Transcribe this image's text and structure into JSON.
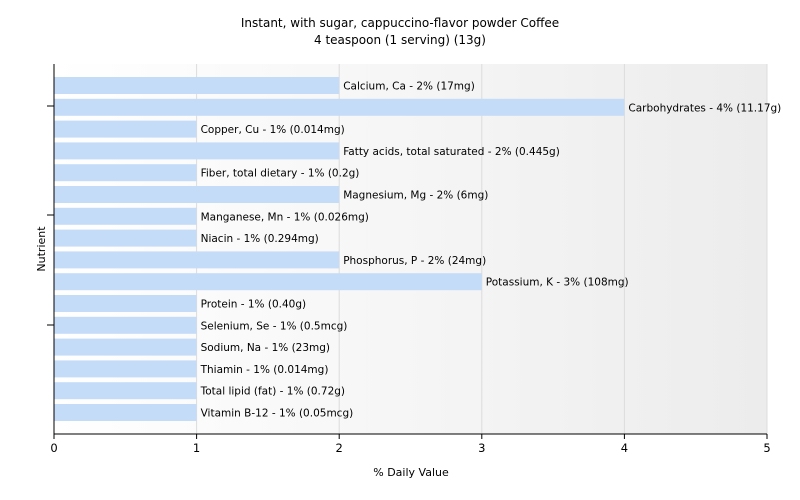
{
  "chart_data": {
    "type": "bar",
    "orientation": "horizontal",
    "title": "Instant, with sugar, cappuccino-flavor powder Coffee",
    "subtitle": "4 teaspoon (1 serving) (13g)",
    "xlabel": "% Daily Value",
    "ylabel": "Nutrient",
    "xlim": [
      0,
      5
    ],
    "xticks": [
      0,
      1,
      2,
      3,
      4,
      5
    ],
    "grid": true,
    "bar_color": "#c5dcf8",
    "categories": [
      "Calcium, Ca",
      "Carbohydrates",
      "Copper, Cu",
      "Fatty acids, total saturated",
      "Fiber, total dietary",
      "Magnesium, Mg",
      "Manganese, Mn",
      "Niacin",
      "Phosphorus, P",
      "Potassium, K",
      "Protein",
      "Selenium, Se",
      "Sodium, Na",
      "Thiamin",
      "Total lipid (fat)",
      "Vitamin B-12"
    ],
    "values": [
      2,
      4,
      1,
      2,
      1,
      2,
      1,
      1,
      2,
      3,
      1,
      1,
      1,
      1,
      1,
      1
    ],
    "labels": [
      "Calcium, Ca - 2% (17mg)",
      "Carbohydrates - 4% (11.17g)",
      "Copper, Cu - 1% (0.014mg)",
      "Fatty acids, total saturated - 2% (0.445g)",
      "Fiber, total dietary - 1% (0.2g)",
      "Magnesium, Mg - 2% (6mg)",
      "Manganese, Mn - 1% (0.026mg)",
      "Niacin - 1% (0.294mg)",
      "Phosphorus, P - 2% (24mg)",
      "Potassium, K - 3% (108mg)",
      "Protein - 1% (0.40g)",
      "Selenium, Se - 1% (0.5mcg)",
      "Sodium, Na - 1% (23mg)",
      "Thiamin - 1% (0.014mg)",
      "Total lipid (fat) - 1% (0.72g)",
      "Vitamin B-12 - 1% (0.05mcg)"
    ]
  }
}
